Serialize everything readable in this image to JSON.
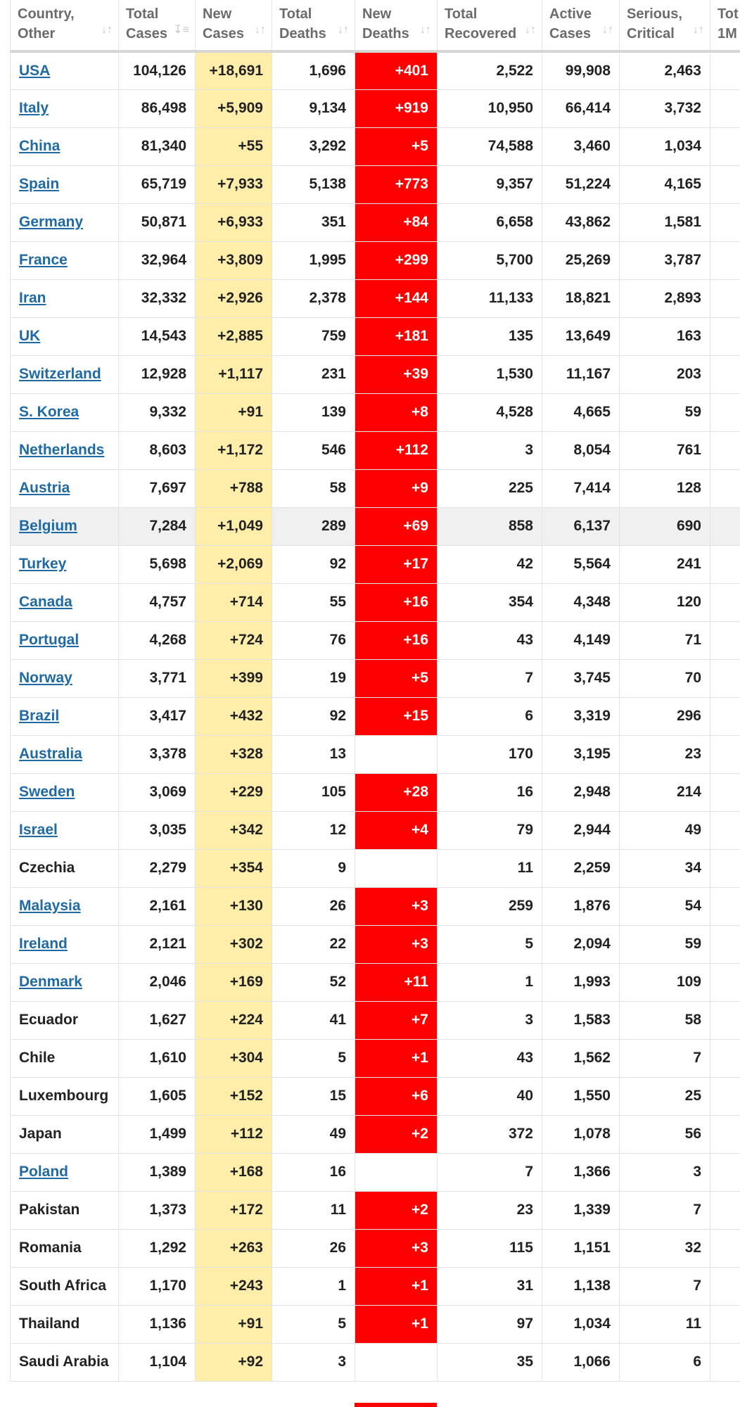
{
  "headers": [
    {
      "line1": "Country,",
      "line2": "Other",
      "sort_icon": "sort-arrows-icon"
    },
    {
      "line1": "Total",
      "line2": "Cases",
      "sort_icon": "sort-desc-icon"
    },
    {
      "line1": "New",
      "line2": "Cases",
      "sort_icon": "sort-arrows-icon"
    },
    {
      "line1": "Total",
      "line2": "Deaths",
      "sort_icon": "sort-arrows-icon"
    },
    {
      "line1": "New",
      "line2": "Deaths",
      "sort_icon": "sort-arrows-icon"
    },
    {
      "line1": "Total",
      "line2": "Recovered",
      "sort_icon": "sort-arrows-icon"
    },
    {
      "line1": "Active",
      "line2": "Cases",
      "sort_icon": "sort-arrows-icon"
    },
    {
      "line1": "Serious,",
      "line2": "Critical",
      "sort_icon": "sort-arrows-icon"
    },
    {
      "line1": "Tot",
      "line2": "1M",
      "sort_icon": ""
    }
  ],
  "colors": {
    "new_cases_bg": "#ffeeaa",
    "new_deaths_bg": "#ff0000",
    "link": "#1f6aa5"
  },
  "rows": [
    {
      "country": "USA",
      "link": true,
      "total_cases": "104,126",
      "new_cases": "+18,691",
      "total_deaths": "1,696",
      "new_deaths": "+401",
      "total_recovered": "2,522",
      "active_cases": "99,908",
      "serious_critical": "2,463"
    },
    {
      "country": "Italy",
      "link": true,
      "total_cases": "86,498",
      "new_cases": "+5,909",
      "total_deaths": "9,134",
      "new_deaths": "+919",
      "total_recovered": "10,950",
      "active_cases": "66,414",
      "serious_critical": "3,732"
    },
    {
      "country": "China",
      "link": true,
      "total_cases": "81,340",
      "new_cases": "+55",
      "total_deaths": "3,292",
      "new_deaths": "+5",
      "total_recovered": "74,588",
      "active_cases": "3,460",
      "serious_critical": "1,034"
    },
    {
      "country": "Spain",
      "link": true,
      "total_cases": "65,719",
      "new_cases": "+7,933",
      "total_deaths": "5,138",
      "new_deaths": "+773",
      "total_recovered": "9,357",
      "active_cases": "51,224",
      "serious_critical": "4,165"
    },
    {
      "country": "Germany",
      "link": true,
      "total_cases": "50,871",
      "new_cases": "+6,933",
      "total_deaths": "351",
      "new_deaths": "+84",
      "total_recovered": "6,658",
      "active_cases": "43,862",
      "serious_critical": "1,581"
    },
    {
      "country": "France",
      "link": true,
      "total_cases": "32,964",
      "new_cases": "+3,809",
      "total_deaths": "1,995",
      "new_deaths": "+299",
      "total_recovered": "5,700",
      "active_cases": "25,269",
      "serious_critical": "3,787"
    },
    {
      "country": "Iran",
      "link": true,
      "total_cases": "32,332",
      "new_cases": "+2,926",
      "total_deaths": "2,378",
      "new_deaths": "+144",
      "total_recovered": "11,133",
      "active_cases": "18,821",
      "serious_critical": "2,893"
    },
    {
      "country": "UK",
      "link": true,
      "total_cases": "14,543",
      "new_cases": "+2,885",
      "total_deaths": "759",
      "new_deaths": "+181",
      "total_recovered": "135",
      "active_cases": "13,649",
      "serious_critical": "163"
    },
    {
      "country": "Switzerland",
      "link": true,
      "total_cases": "12,928",
      "new_cases": "+1,117",
      "total_deaths": "231",
      "new_deaths": "+39",
      "total_recovered": "1,530",
      "active_cases": "11,167",
      "serious_critical": "203"
    },
    {
      "country": "S. Korea",
      "link": true,
      "total_cases": "9,332",
      "new_cases": "+91",
      "total_deaths": "139",
      "new_deaths": "+8",
      "total_recovered": "4,528",
      "active_cases": "4,665",
      "serious_critical": "59"
    },
    {
      "country": "Netherlands",
      "link": true,
      "total_cases": "8,603",
      "new_cases": "+1,172",
      "total_deaths": "546",
      "new_deaths": "+112",
      "total_recovered": "3",
      "active_cases": "8,054",
      "serious_critical": "761"
    },
    {
      "country": "Austria",
      "link": true,
      "total_cases": "7,697",
      "new_cases": "+788",
      "total_deaths": "58",
      "new_deaths": "+9",
      "total_recovered": "225",
      "active_cases": "7,414",
      "serious_critical": "128"
    },
    {
      "country": "Belgium",
      "link": true,
      "highlight": true,
      "total_cases": "7,284",
      "new_cases": "+1,049",
      "total_deaths": "289",
      "new_deaths": "+69",
      "total_recovered": "858",
      "active_cases": "6,137",
      "serious_critical": "690"
    },
    {
      "country": "Turkey",
      "link": true,
      "total_cases": "5,698",
      "new_cases": "+2,069",
      "total_deaths": "92",
      "new_deaths": "+17",
      "total_recovered": "42",
      "active_cases": "5,564",
      "serious_critical": "241"
    },
    {
      "country": "Canada",
      "link": true,
      "total_cases": "4,757",
      "new_cases": "+714",
      "total_deaths": "55",
      "new_deaths": "+16",
      "total_recovered": "354",
      "active_cases": "4,348",
      "serious_critical": "120"
    },
    {
      "country": "Portugal",
      "link": true,
      "total_cases": "4,268",
      "new_cases": "+724",
      "total_deaths": "76",
      "new_deaths": "+16",
      "total_recovered": "43",
      "active_cases": "4,149",
      "serious_critical": "71"
    },
    {
      "country": "Norway",
      "link": true,
      "total_cases": "3,771",
      "new_cases": "+399",
      "total_deaths": "19",
      "new_deaths": "+5",
      "total_recovered": "7",
      "active_cases": "3,745",
      "serious_critical": "70"
    },
    {
      "country": "Brazil",
      "link": true,
      "total_cases": "3,417",
      "new_cases": "+432",
      "total_deaths": "92",
      "new_deaths": "+15",
      "total_recovered": "6",
      "active_cases": "3,319",
      "serious_critical": "296"
    },
    {
      "country": "Australia",
      "link": true,
      "total_cases": "3,378",
      "new_cases": "+328",
      "total_deaths": "13",
      "new_deaths": "",
      "total_recovered": "170",
      "active_cases": "3,195",
      "serious_critical": "23"
    },
    {
      "country": "Sweden",
      "link": true,
      "total_cases": "3,069",
      "new_cases": "+229",
      "total_deaths": "105",
      "new_deaths": "+28",
      "total_recovered": "16",
      "active_cases": "2,948",
      "serious_critical": "214"
    },
    {
      "country": "Israel",
      "link": true,
      "total_cases": "3,035",
      "new_cases": "+342",
      "total_deaths": "12",
      "new_deaths": "+4",
      "total_recovered": "79",
      "active_cases": "2,944",
      "serious_critical": "49"
    },
    {
      "country": "Czechia",
      "link": false,
      "total_cases": "2,279",
      "new_cases": "+354",
      "total_deaths": "9",
      "new_deaths": "",
      "total_recovered": "11",
      "active_cases": "2,259",
      "serious_critical": "34"
    },
    {
      "country": "Malaysia",
      "link": true,
      "total_cases": "2,161",
      "new_cases": "+130",
      "total_deaths": "26",
      "new_deaths": "+3",
      "total_recovered": "259",
      "active_cases": "1,876",
      "serious_critical": "54"
    },
    {
      "country": "Ireland",
      "link": true,
      "total_cases": "2,121",
      "new_cases": "+302",
      "total_deaths": "22",
      "new_deaths": "+3",
      "total_recovered": "5",
      "active_cases": "2,094",
      "serious_critical": "59"
    },
    {
      "country": "Denmark",
      "link": true,
      "total_cases": "2,046",
      "new_cases": "+169",
      "total_deaths": "52",
      "new_deaths": "+11",
      "total_recovered": "1",
      "active_cases": "1,993",
      "serious_critical": "109"
    },
    {
      "country": "Ecuador",
      "link": false,
      "total_cases": "1,627",
      "new_cases": "+224",
      "total_deaths": "41",
      "new_deaths": "+7",
      "total_recovered": "3",
      "active_cases": "1,583",
      "serious_critical": "58"
    },
    {
      "country": "Chile",
      "link": false,
      "total_cases": "1,610",
      "new_cases": "+304",
      "total_deaths": "5",
      "new_deaths": "+1",
      "total_recovered": "43",
      "active_cases": "1,562",
      "serious_critical": "7"
    },
    {
      "country": "Luxembourg",
      "link": false,
      "total_cases": "1,605",
      "new_cases": "+152",
      "total_deaths": "15",
      "new_deaths": "+6",
      "total_recovered": "40",
      "active_cases": "1,550",
      "serious_critical": "25"
    },
    {
      "country": "Japan",
      "link": false,
      "total_cases": "1,499",
      "new_cases": "+112",
      "total_deaths": "49",
      "new_deaths": "+2",
      "total_recovered": "372",
      "active_cases": "1,078",
      "serious_critical": "56"
    },
    {
      "country": "Poland",
      "link": true,
      "total_cases": "1,389",
      "new_cases": "+168",
      "total_deaths": "16",
      "new_deaths": "",
      "total_recovered": "7",
      "active_cases": "1,366",
      "serious_critical": "3"
    },
    {
      "country": "Pakistan",
      "link": false,
      "total_cases": "1,373",
      "new_cases": "+172",
      "total_deaths": "11",
      "new_deaths": "+2",
      "total_recovered": "23",
      "active_cases": "1,339",
      "serious_critical": "7"
    },
    {
      "country": "Romania",
      "link": false,
      "total_cases": "1,292",
      "new_cases": "+263",
      "total_deaths": "26",
      "new_deaths": "+3",
      "total_recovered": "115",
      "active_cases": "1,151",
      "serious_critical": "32"
    },
    {
      "country": "South Africa",
      "link": false,
      "total_cases": "1,170",
      "new_cases": "+243",
      "total_deaths": "1",
      "new_deaths": "+1",
      "total_recovered": "31",
      "active_cases": "1,138",
      "serious_critical": "7"
    },
    {
      "country": "Thailand",
      "link": false,
      "total_cases": "1,136",
      "new_cases": "+91",
      "total_deaths": "5",
      "new_deaths": "+1",
      "total_recovered": "97",
      "active_cases": "1,034",
      "serious_critical": "11"
    },
    {
      "country": "Saudi Arabia",
      "link": false,
      "total_cases": "1,104",
      "new_cases": "+92",
      "total_deaths": "3",
      "new_deaths": "",
      "total_recovered": "35",
      "active_cases": "1,066",
      "serious_critical": "6"
    }
  ]
}
